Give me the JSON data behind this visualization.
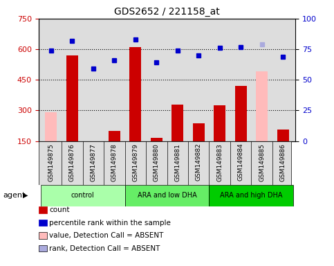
{
  "title": "GDS2652 / 221158_at",
  "samples": [
    "GSM149875",
    "GSM149876",
    "GSM149877",
    "GSM149878",
    "GSM149879",
    "GSM149880",
    "GSM149881",
    "GSM149882",
    "GSM149883",
    "GSM149884",
    "GSM149885",
    "GSM149886"
  ],
  "group_colors": [
    "#aaffaa",
    "#66ee66",
    "#00cc00"
  ],
  "group_labels": [
    "control",
    "ARA and low DHA",
    "ARA and high DHA"
  ],
  "group_ranges": [
    [
      0,
      3
    ],
    [
      4,
      7
    ],
    [
      8,
      11
    ]
  ],
  "bar_values": [
    null,
    570,
    150,
    200,
    610,
    165,
    330,
    235,
    325,
    420,
    null,
    205
  ],
  "bar_absent": [
    290,
    null,
    null,
    null,
    null,
    null,
    null,
    null,
    null,
    null,
    490,
    null
  ],
  "dot_values": [
    74,
    82,
    59,
    66,
    83,
    64,
    74,
    70,
    76,
    77,
    null,
    69
  ],
  "dot_absent": [
    null,
    null,
    null,
    null,
    null,
    null,
    null,
    null,
    null,
    null,
    79,
    null
  ],
  "ylim_left": [
    150,
    750
  ],
  "ylim_right": [
    0,
    100
  ],
  "yticks_left": [
    150,
    300,
    450,
    600,
    750
  ],
  "yticks_right": [
    0,
    25,
    50,
    75,
    100
  ],
  "grid_lines": [
    300,
    450,
    600
  ],
  "bar_color": "#cc0000",
  "bar_absent_color": "#ffbbbb",
  "dot_color": "#0000cc",
  "dot_absent_color": "#aaaadd",
  "bg_color": "#dddddd",
  "legend_items": [
    {
      "label": "count",
      "color": "#cc0000"
    },
    {
      "label": "percentile rank within the sample",
      "color": "#0000cc"
    },
    {
      "label": "value, Detection Call = ABSENT",
      "color": "#ffbbbb"
    },
    {
      "label": "rank, Detection Call = ABSENT",
      "color": "#aaaadd"
    }
  ]
}
